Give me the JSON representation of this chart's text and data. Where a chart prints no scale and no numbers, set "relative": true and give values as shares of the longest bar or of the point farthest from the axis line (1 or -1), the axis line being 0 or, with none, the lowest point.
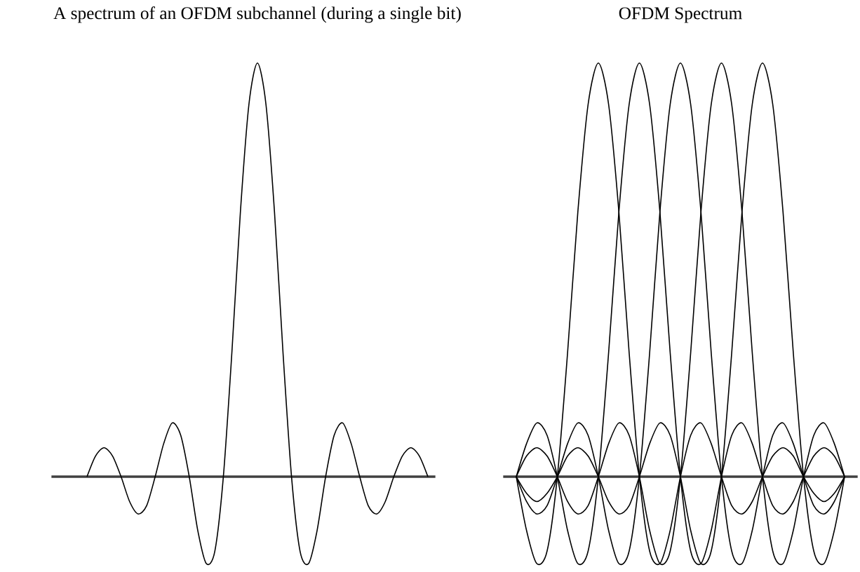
{
  "chart_data": [
    {
      "type": "line",
      "title": "A spectrum of an OFDM subchannel (during a single bit)",
      "relative": true,
      "line_style": "solid",
      "categories": [
        null,
        null,
        null,
        null,
        null,
        null,
        null,
        null,
        null,
        null,
        null,
        null,
        null,
        null,
        null,
        null,
        null,
        null,
        null,
        null,
        null,
        null,
        null,
        null,
        null,
        null,
        null,
        null,
        null,
        null,
        null,
        null,
        null,
        null,
        null,
        null,
        null,
        null,
        null,
        null,
        null
      ],
      "series": [
        {
          "color": "#000000",
          "values": [
            0,
            0.05,
            0.07,
            0.05,
            0,
            -0.06,
            -0.09,
            -0.07,
            0,
            0.08,
            0.13,
            0.1,
            0,
            -0.13,
            -0.21,
            -0.18,
            0,
            0.3,
            0.64,
            0.9,
            1,
            0.9,
            0.64,
            0.3,
            0,
            -0.18,
            -0.21,
            -0.13,
            0,
            0.1,
            0.13,
            0.08,
            0,
            -0.07,
            -0.09,
            -0.06,
            0,
            0.05,
            0.07,
            0.05,
            0
          ]
        }
      ]
    },
    {
      "type": "line",
      "title": "OFDM Spectrum",
      "relative": true,
      "line_style": "solid",
      "categories": [
        null,
        null,
        null,
        null,
        null,
        null,
        null,
        null,
        null,
        null,
        null,
        null,
        null,
        null,
        null,
        null,
        null,
        null,
        null,
        null,
        null,
        null,
        null,
        null,
        null,
        null,
        null,
        null,
        null,
        null,
        null,
        null,
        null
      ],
      "series": [
        {
          "color": "#000000",
          "values": [
            0,
            -0.13,
            -0.21,
            -0.18,
            0,
            0.3,
            0.64,
            0.9,
            1,
            0.9,
            0.64,
            0.3,
            0,
            -0.18,
            -0.21,
            -0.13,
            0,
            0.1,
            0.13,
            0.08,
            0,
            -0.07,
            -0.09,
            -0.06,
            0,
            0.05,
            0.07,
            0.05,
            0,
            -0.04,
            -0.06,
            -0.04,
            0
          ]
        },
        {
          "color": "#000000",
          "values": [
            0,
            0.08,
            0.13,
            0.1,
            0,
            -0.13,
            -0.21,
            -0.18,
            0,
            0.3,
            0.64,
            0.9,
            1,
            0.9,
            0.64,
            0.3,
            0,
            -0.18,
            -0.21,
            -0.13,
            0,
            0.1,
            0.13,
            0.08,
            0,
            -0.07,
            -0.09,
            -0.06,
            0,
            0.05,
            0.07,
            0.05,
            0
          ]
        },
        {
          "color": "#000000",
          "values": [
            0,
            -0.06,
            -0.09,
            -0.07,
            0,
            0.08,
            0.13,
            0.1,
            0,
            -0.13,
            -0.21,
            -0.18,
            0,
            0.3,
            0.64,
            0.9,
            1,
            0.9,
            0.64,
            0.3,
            0,
            -0.18,
            -0.21,
            -0.13,
            0,
            0.1,
            0.13,
            0.08,
            0,
            -0.07,
            -0.09,
            -0.06,
            0
          ]
        },
        {
          "color": "#000000",
          "values": [
            0,
            0.05,
            0.07,
            0.05,
            0,
            -0.06,
            -0.09,
            -0.07,
            0,
            0.08,
            0.13,
            0.1,
            0,
            -0.13,
            -0.21,
            -0.18,
            0,
            0.3,
            0.64,
            0.9,
            1,
            0.9,
            0.64,
            0.3,
            0,
            -0.18,
            -0.21,
            -0.13,
            0,
            0.1,
            0.13,
            0.08,
            0
          ]
        },
        {
          "color": "#000000",
          "values": [
            0,
            -0.04,
            -0.06,
            -0.04,
            0,
            0.05,
            0.07,
            0.05,
            0,
            -0.06,
            -0.09,
            -0.07,
            0,
            0.08,
            0.13,
            0.1,
            0,
            -0.13,
            -0.21,
            -0.18,
            0,
            0.3,
            0.64,
            0.9,
            1,
            0.9,
            0.64,
            0.3,
            0,
            -0.18,
            -0.21,
            -0.13,
            0
          ]
        }
      ]
    }
  ]
}
